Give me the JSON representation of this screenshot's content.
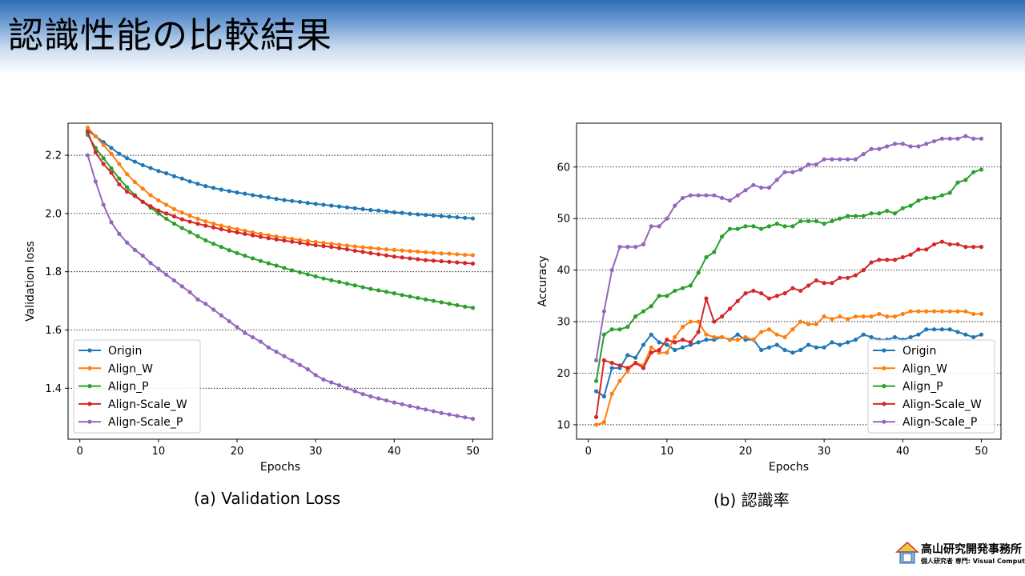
{
  "slide": {
    "title": "認識性能の比較結果",
    "caption_a": "(a) Validation Loss",
    "caption_b": "(b) 認識率",
    "logo_line1": "高山研究開発事務所",
    "logo_line2": "個人研究者 専門: Visual Computing"
  },
  "colors": {
    "Origin": "#1f77b4",
    "Align_W": "#ff7f0e",
    "Align_P": "#2ca02c",
    "Align-Scale_W": "#d62728",
    "Align-Scale_P": "#9467bd"
  },
  "chart_data": [
    {
      "type": "line",
      "title": "",
      "xlabel": "Epochs",
      "ylabel": "Validation loss",
      "xlim": [
        -1.5,
        52.5
      ],
      "ylim": [
        1.225,
        2.31
      ],
      "xticks": [
        0,
        10,
        20,
        30,
        40,
        50
      ],
      "yticks": [
        1.4,
        1.6,
        1.8,
        2.0,
        2.2
      ],
      "grid": "y-dotted",
      "legend": "lower-left",
      "x": [
        1,
        2,
        3,
        4,
        5,
        6,
        7,
        8,
        9,
        10,
        11,
        12,
        13,
        14,
        15,
        16,
        17,
        18,
        19,
        20,
        21,
        22,
        23,
        24,
        25,
        26,
        27,
        28,
        29,
        30,
        31,
        32,
        33,
        34,
        35,
        36,
        37,
        38,
        39,
        40,
        41,
        42,
        43,
        44,
        45,
        46,
        47,
        48,
        49,
        50
      ],
      "series": [
        {
          "name": "Origin",
          "values": [
            2.285,
            2.265,
            2.245,
            2.225,
            2.205,
            2.19,
            2.178,
            2.166,
            2.156,
            2.146,
            2.138,
            2.128,
            2.12,
            2.11,
            2.102,
            2.094,
            2.088,
            2.082,
            2.077,
            2.072,
            2.068,
            2.063,
            2.059,
            2.055,
            2.05,
            2.046,
            2.043,
            2.04,
            2.036,
            2.033,
            2.03,
            2.027,
            2.024,
            2.021,
            2.018,
            2.015,
            2.012,
            2.01,
            2.007,
            2.004,
            2.002,
            1.999,
            1.997,
            1.995,
            1.993,
            1.991,
            1.989,
            1.987,
            1.985,
            1.983
          ]
        },
        {
          "name": "Align_W",
          "values": [
            2.295,
            2.265,
            2.235,
            2.205,
            2.17,
            2.135,
            2.108,
            2.085,
            2.063,
            2.045,
            2.03,
            2.015,
            2.003,
            1.992,
            1.982,
            1.973,
            1.965,
            1.958,
            1.952,
            1.946,
            1.941,
            1.935,
            1.93,
            1.925,
            1.921,
            1.917,
            1.913,
            1.909,
            1.906,
            1.902,
            1.899,
            1.896,
            1.893,
            1.89,
            1.887,
            1.884,
            1.882,
            1.879,
            1.877,
            1.875,
            1.873,
            1.871,
            1.869,
            1.867,
            1.865,
            1.863,
            1.862,
            1.86,
            1.858,
            1.857
          ]
        },
        {
          "name": "Align_P",
          "values": [
            2.27,
            2.225,
            2.19,
            2.155,
            2.12,
            2.09,
            2.063,
            2.04,
            2.02,
            2.0,
            1.982,
            1.965,
            1.95,
            1.936,
            1.922,
            1.908,
            1.896,
            1.885,
            1.874,
            1.864,
            1.855,
            1.846,
            1.837,
            1.829,
            1.821,
            1.813,
            1.805,
            1.798,
            1.791,
            1.784,
            1.777,
            1.771,
            1.765,
            1.759,
            1.753,
            1.747,
            1.741,
            1.736,
            1.731,
            1.726,
            1.72,
            1.715,
            1.71,
            1.705,
            1.7,
            1.695,
            1.69,
            1.685,
            1.68,
            1.676
          ]
        },
        {
          "name": "Align-Scale_W",
          "values": [
            2.28,
            2.21,
            2.17,
            2.14,
            2.1,
            2.075,
            2.06,
            2.04,
            2.025,
            2.01,
            2.0,
            1.99,
            1.98,
            1.972,
            1.965,
            1.958,
            1.952,
            1.946,
            1.94,
            1.935,
            1.93,
            1.925,
            1.92,
            1.915,
            1.911,
            1.907,
            1.903,
            1.899,
            1.895,
            1.891,
            1.888,
            1.885,
            1.881,
            1.877,
            1.872,
            1.868,
            1.864,
            1.86,
            1.856,
            1.852,
            1.849,
            1.846,
            1.843,
            1.84,
            1.838,
            1.836,
            1.834,
            1.832,
            1.83,
            1.828
          ]
        },
        {
          "name": "Align-Scale_P",
          "values": [
            2.2,
            2.11,
            2.03,
            1.97,
            1.93,
            1.9,
            1.875,
            1.855,
            1.83,
            1.81,
            1.79,
            1.77,
            1.75,
            1.73,
            1.705,
            1.69,
            1.67,
            1.65,
            1.63,
            1.61,
            1.59,
            1.575,
            1.56,
            1.54,
            1.525,
            1.51,
            1.495,
            1.48,
            1.465,
            1.445,
            1.43,
            1.42,
            1.41,
            1.4,
            1.39,
            1.38,
            1.372,
            1.365,
            1.358,
            1.351,
            1.345,
            1.339,
            1.333,
            1.327,
            1.321,
            1.315,
            1.31,
            1.305,
            1.3,
            1.295
          ]
        }
      ]
    },
    {
      "type": "line",
      "title": "",
      "xlabel": "Epochs",
      "ylabel": "Accuracy",
      "xlim": [
        -1.5,
        52.5
      ],
      "ylim": [
        7.2,
        68.5
      ],
      "xticks": [
        0,
        10,
        20,
        30,
        40,
        50
      ],
      "yticks": [
        10,
        20,
        30,
        40,
        50,
        60
      ],
      "grid": "y-dotted",
      "legend": "lower-right",
      "x": [
        1,
        2,
        3,
        4,
        5,
        6,
        7,
        8,
        9,
        10,
        11,
        12,
        13,
        14,
        15,
        16,
        17,
        18,
        19,
        20,
        21,
        22,
        23,
        24,
        25,
        26,
        27,
        28,
        29,
        30,
        31,
        32,
        33,
        34,
        35,
        36,
        37,
        38,
        39,
        40,
        41,
        42,
        43,
        44,
        45,
        46,
        47,
        48,
        49,
        50
      ],
      "series": [
        {
          "name": "Origin",
          "values": [
            16.5,
            15.5,
            21,
            21,
            23.5,
            23,
            25.5,
            27.5,
            26,
            25.5,
            24.5,
            25,
            25.5,
            26,
            26.5,
            26.5,
            27,
            26.5,
            27.5,
            26.5,
            26.5,
            24.5,
            25,
            25.5,
            24.5,
            24,
            24.5,
            25.5,
            25,
            25,
            26,
            25.5,
            26,
            26.5,
            27.5,
            27,
            26.5,
            26.5,
            27,
            26.5,
            27,
            27.5,
            28.5,
            28.5,
            28.5,
            28.5,
            28,
            27.5,
            27,
            27.5
          ]
        },
        {
          "name": "Align_W",
          "values": [
            10,
            10.5,
            16,
            18.5,
            20.5,
            22,
            21.5,
            25,
            24,
            24,
            27,
            29,
            30,
            30,
            27.5,
            27,
            27,
            26.5,
            26.5,
            27,
            26.5,
            28,
            28.5,
            27.5,
            27,
            28.5,
            30,
            29.5,
            29.5,
            31,
            30.5,
            31,
            30.5,
            31,
            31,
            31,
            31.5,
            31,
            31,
            31.5,
            32,
            32,
            32,
            32,
            32,
            32,
            32,
            32,
            31.5,
            31.5
          ]
        },
        {
          "name": "Align_P",
          "values": [
            18.5,
            27.5,
            28.5,
            28.5,
            29,
            31,
            32,
            33,
            35,
            35,
            36,
            36.5,
            37,
            39.5,
            42.5,
            43.5,
            46.5,
            48,
            48,
            48.5,
            48.5,
            48,
            48.5,
            49,
            48.5,
            48.5,
            49.5,
            49.5,
            49.5,
            49,
            49.5,
            50,
            50.5,
            50.5,
            50.5,
            51,
            51,
            51.5,
            51,
            52,
            52.5,
            53.5,
            54,
            54,
            54.5,
            55,
            57,
            57.5,
            59,
            59.5
          ]
        },
        {
          "name": "Align-Scale_W",
          "values": [
            11.5,
            22.5,
            22,
            21.5,
            21,
            22,
            21,
            24,
            24.5,
            26.5,
            26,
            26.5,
            26,
            28,
            34.5,
            30,
            31,
            32.5,
            34,
            35.5,
            36,
            35.5,
            34.5,
            35,
            35.5,
            36.5,
            36,
            37,
            38,
            37.5,
            37.5,
            38.5,
            38.5,
            39,
            40,
            41.5,
            42,
            42,
            42,
            42.5,
            43,
            44,
            44,
            45,
            45.5,
            45,
            45,
            44.5,
            44.5,
            44.5
          ]
        },
        {
          "name": "Align-Scale_P",
          "values": [
            22.5,
            32,
            40,
            44.5,
            44.5,
            44.5,
            45,
            48.5,
            48.5,
            50,
            52.5,
            54,
            54.5,
            54.5,
            54.5,
            54.5,
            54,
            53.5,
            54.5,
            55.5,
            56.5,
            56,
            56,
            57.5,
            59,
            59,
            59.5,
            60.5,
            60.5,
            61.5,
            61.5,
            61.5,
            61.5,
            61.5,
            62.5,
            63.5,
            63.5,
            64,
            64.5,
            64.5,
            64,
            64,
            64.5,
            65,
            65.5,
            65.5,
            65.5,
            66,
            65.5,
            65.5
          ]
        }
      ]
    }
  ]
}
